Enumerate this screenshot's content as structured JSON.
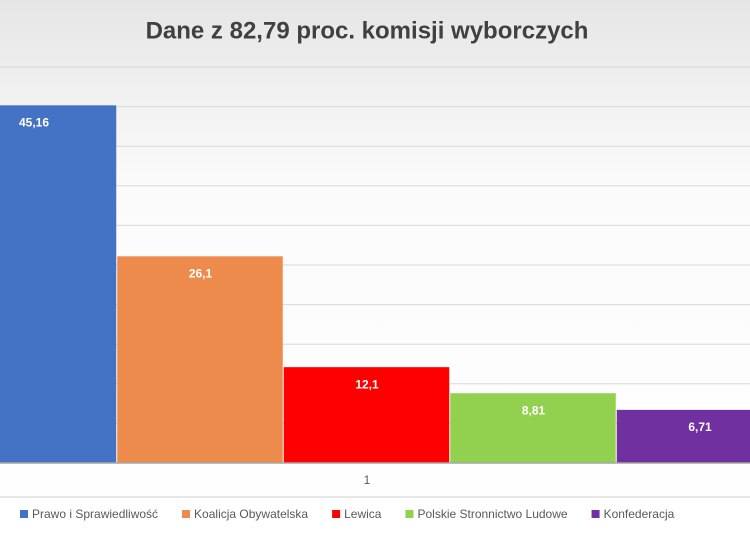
{
  "chart_data": {
    "type": "bar",
    "title": "Dane z 82,79 proc. komisji wyborczych",
    "categories": [
      "1"
    ],
    "series": [
      {
        "name": "Prawo i Sprawiedliwość",
        "color": "#4472c4",
        "values": [
          45.16
        ],
        "value_labels": [
          "45,16"
        ]
      },
      {
        "name": "Koalicja Obywatelska",
        "color": "#ed8b4d",
        "values": [
          26.1
        ],
        "value_labels": [
          "26,1"
        ]
      },
      {
        "name": "Lewica",
        "color": "#ff0000",
        "values": [
          12.1
        ],
        "value_labels": [
          "12,1"
        ]
      },
      {
        "name": "Polskie Stronnictwo Ludowe",
        "color": "#92d050",
        "values": [
          8.81
        ],
        "value_labels": [
          "8,81"
        ]
      },
      {
        "name": "Konfederacja",
        "color": "#7030a0",
        "values": [
          6.71
        ],
        "value_labels": [
          "6,71"
        ]
      }
    ],
    "ylim": [
      0,
      50
    ],
    "yticks": [
      0,
      5,
      10,
      15,
      20,
      25,
      30,
      35,
      40,
      45,
      50
    ],
    "grid": true,
    "legend": "bottom"
  }
}
